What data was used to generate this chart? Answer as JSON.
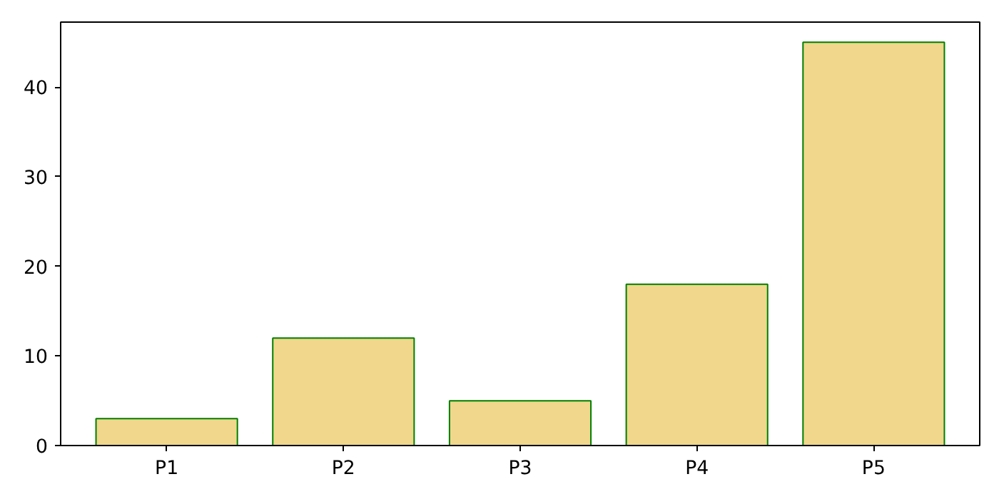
{
  "chart_data": {
    "type": "bar",
    "categories": [
      "P1",
      "P2",
      "P3",
      "P4",
      "P5"
    ],
    "values": [
      3,
      12,
      5,
      18,
      45
    ],
    "color": "#f0d78c",
    "ylim": [
      0,
      47.25
    ],
    "yticks": [
      0,
      10,
      20,
      30,
      40
    ],
    "grid": false
  }
}
